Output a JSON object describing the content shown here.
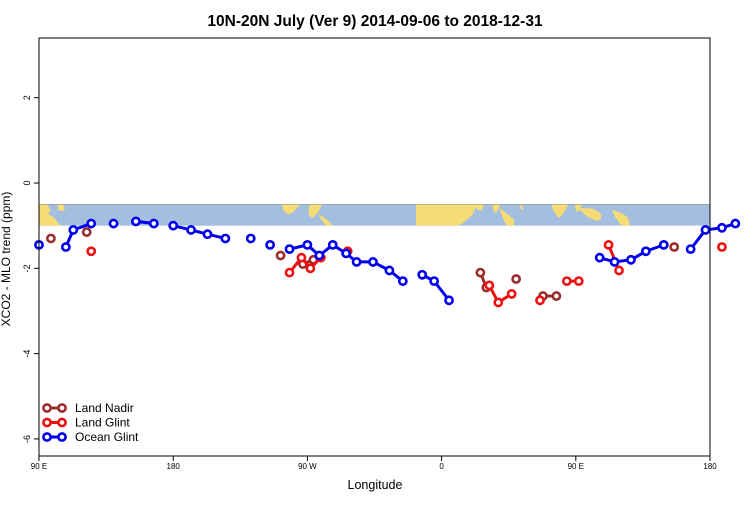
{
  "chart_data": {
    "type": "line",
    "title": "10N-20N July (Ver 9)   2014-09-06 to 2018-12-31",
    "xlabel": "Longitude",
    "ylabel": "XCO2 - MLO trend (ppm)",
    "x_axis": {
      "range": [
        90,
        450
      ],
      "ticks": [
        {
          "x": 90,
          "label": "90 E"
        },
        {
          "x": 180,
          "label": "180"
        },
        {
          "x": 270,
          "label": "90 W"
        },
        {
          "x": 360,
          "label": "0"
        },
        {
          "x": 450,
          "label": "90 E"
        },
        {
          "x": 540,
          "label": "180"
        }
      ],
      "note": "x values in degrees east continuous (270 = 90 W, 360 = 0, 450 = 90 E)"
    },
    "y_axis": {
      "range": [
        -6.4,
        3.4
      ],
      "ticks": [
        {
          "y": 2,
          "label": "2"
        },
        {
          "y": 0,
          "label": "0"
        },
        {
          "y": -2,
          "label": "-2"
        },
        {
          "y": -4,
          "label": "-4"
        },
        {
          "y": -6,
          "label": "-6"
        }
      ]
    },
    "x_range_full": [
      90,
      540
    ],
    "map_band": {
      "ymin": -1.0,
      "ymax": -0.5,
      "ocean_color": "#a4bedf",
      "land_color": "#f6dc74"
    },
    "legend": {
      "position": "bottom-left"
    },
    "series": [
      {
        "name": "Land Nadir",
        "color": "#9b2c2c",
        "points": [
          [
            98,
            -1.3
          ],
          [
            122,
            -1.15
          ],
          [
            252,
            -1.7
          ],
          [
            267,
            -1.9
          ],
          [
            274,
            -1.8
          ],
          [
            386,
            -2.1
          ],
          [
            390,
            -2.45
          ],
          [
            410,
            -2.25
          ],
          [
            428,
            -2.65
          ],
          [
            437,
            -2.65
          ],
          [
            516,
            -1.5
          ],
          [
            616,
            -1.15
          ]
        ]
      },
      {
        "name": "Land Glint",
        "color": "#ee1111",
        "points": [
          [
            125,
            -1.6
          ],
          [
            258,
            -2.1
          ],
          [
            266,
            -1.75
          ],
          [
            272,
            -2.0
          ],
          [
            279,
            -1.75
          ],
          [
            297,
            -1.6
          ],
          [
            392,
            -2.4
          ],
          [
            398,
            -2.8
          ],
          [
            407,
            -2.6
          ],
          [
            426,
            -2.75
          ],
          [
            444,
            -2.3
          ],
          [
            452,
            -2.3
          ],
          [
            472,
            -1.45
          ],
          [
            479,
            -2.05
          ],
          [
            548,
            -1.5
          ],
          [
            576,
            -1.3
          ],
          [
            624,
            -1.6
          ]
        ]
      },
      {
        "name": "Ocean Glint",
        "color": "#0000ee",
        "points": [
          [
            90,
            -1.45
          ],
          [
            108,
            -1.5
          ],
          [
            113,
            -1.1
          ],
          [
            125,
            -0.95
          ],
          [
            140,
            -0.95
          ],
          [
            155,
            -0.9
          ],
          [
            167,
            -0.95
          ],
          [
            180,
            -1.0
          ],
          [
            192,
            -1.1
          ],
          [
            203,
            -1.2
          ],
          [
            215,
            -1.3
          ],
          [
            232,
            -1.3
          ],
          [
            245,
            -1.45
          ],
          [
            258,
            -1.55
          ],
          [
            270,
            -1.45
          ],
          [
            278,
            -1.7
          ],
          [
            287,
            -1.45
          ],
          [
            296,
            -1.65
          ],
          [
            303,
            -1.85
          ],
          [
            314,
            -1.85
          ],
          [
            325,
            -2.05
          ],
          [
            334,
            -2.3
          ],
          [
            347,
            -2.15
          ],
          [
            355,
            -2.3
          ],
          [
            365,
            -2.75
          ],
          [
            466,
            -1.75
          ],
          [
            476,
            -1.85
          ],
          [
            487,
            -1.8
          ],
          [
            497,
            -1.6
          ],
          [
            509,
            -1.45
          ],
          [
            527,
            -1.55
          ],
          [
            537,
            -1.1
          ],
          [
            548,
            -1.05
          ],
          [
            557,
            -0.95
          ],
          [
            574,
            -0.95
          ],
          [
            588,
            -0.9
          ],
          [
            598,
            -0.95
          ],
          [
            609,
            -1.0
          ],
          [
            620,
            -1.05
          ]
        ]
      }
    ]
  }
}
